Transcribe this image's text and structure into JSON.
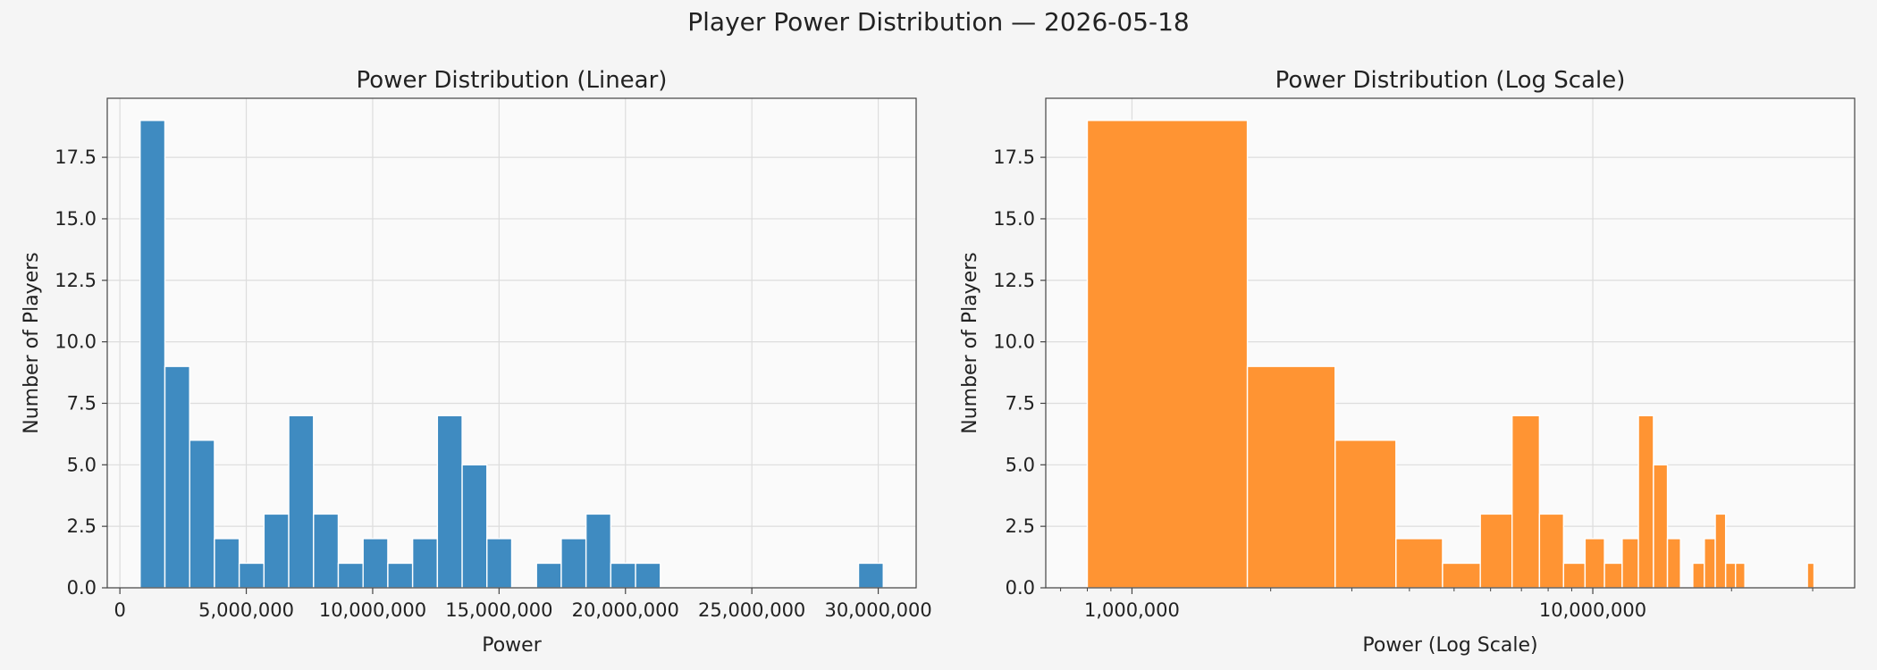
{
  "suptitle": "Player Power Distribution — 2026-05-18",
  "colors": {
    "linear_bars": "#3f8bc1",
    "log_bars": "#ff9433",
    "plot_bg": "#fafafa",
    "grid": "#dddddd"
  },
  "chart_data": [
    {
      "type": "bar",
      "title": "Power Distribution (Linear)",
      "xlabel": "Power",
      "ylabel": "Number of Players",
      "xscale": "linear",
      "xlim": [
        -500000,
        31500000
      ],
      "ylim": [
        0,
        19.9
      ],
      "grid": true,
      "x_ticks": [
        0,
        5000000,
        10000000,
        15000000,
        20000000,
        25000000,
        30000000
      ],
      "x_tick_labels": [
        "0",
        "5,000,000",
        "10,000,000",
        "15,000,000",
        "20,000,000",
        "25,000,000",
        "30,000,000"
      ],
      "y_ticks": [
        0,
        2.5,
        5,
        7.5,
        10,
        12.5,
        15,
        17.5
      ],
      "y_tick_labels": [
        "0.0",
        "2.5",
        "5.0",
        "7.5",
        "10.0",
        "12.5",
        "15.0",
        "17.5"
      ],
      "bins": [
        {
          "x0": 800000,
          "x1": 1780000,
          "count": 19
        },
        {
          "x0": 1780000,
          "x1": 2760000,
          "count": 9
        },
        {
          "x0": 2760000,
          "x1": 3740000,
          "count": 6
        },
        {
          "x0": 3740000,
          "x1": 4720000,
          "count": 2
        },
        {
          "x0": 4720000,
          "x1": 5700000,
          "count": 1
        },
        {
          "x0": 5700000,
          "x1": 6680000,
          "count": 3
        },
        {
          "x0": 6680000,
          "x1": 7660000,
          "count": 7
        },
        {
          "x0": 7660000,
          "x1": 8640000,
          "count": 3
        },
        {
          "x0": 8640000,
          "x1": 9620000,
          "count": 1
        },
        {
          "x0": 9620000,
          "x1": 10600000,
          "count": 2
        },
        {
          "x0": 10600000,
          "x1": 11580000,
          "count": 1
        },
        {
          "x0": 11580000,
          "x1": 12560000,
          "count": 2
        },
        {
          "x0": 12560000,
          "x1": 13540000,
          "count": 7
        },
        {
          "x0": 13540000,
          "x1": 14520000,
          "count": 5
        },
        {
          "x0": 14520000,
          "x1": 15500000,
          "count": 2
        },
        {
          "x0": 15500000,
          "x1": 16480000,
          "count": 0
        },
        {
          "x0": 16480000,
          "x1": 17460000,
          "count": 1
        },
        {
          "x0": 17460000,
          "x1": 18440000,
          "count": 2
        },
        {
          "x0": 18440000,
          "x1": 19420000,
          "count": 3
        },
        {
          "x0": 19420000,
          "x1": 20400000,
          "count": 1
        },
        {
          "x0": 20400000,
          "x1": 21380000,
          "count": 1
        },
        {
          "x0": 29220000,
          "x1": 30200000,
          "count": 1
        }
      ]
    },
    {
      "type": "bar",
      "title": "Power Distribution (Log Scale)",
      "xlabel": "Power (Log Scale)",
      "ylabel": "Number of Players",
      "xscale": "log",
      "xlim": [
        650000,
        37000000
      ],
      "ylim": [
        0,
        19.9
      ],
      "grid": true,
      "x_ticks": [
        1000000,
        10000000
      ],
      "x_tick_labels": [
        "1,000,000",
        "10,000,000"
      ],
      "y_ticks": [
        0,
        2.5,
        5,
        7.5,
        10,
        12.5,
        15,
        17.5
      ],
      "y_tick_labels": [
        "0.0",
        "2.5",
        "5.0",
        "7.5",
        "10.0",
        "12.5",
        "15.0",
        "17.5"
      ],
      "bins": [
        {
          "x0": 800000,
          "x1": 1780000,
          "count": 19
        },
        {
          "x0": 1780000,
          "x1": 2760000,
          "count": 9
        },
        {
          "x0": 2760000,
          "x1": 3740000,
          "count": 6
        },
        {
          "x0": 3740000,
          "x1": 4720000,
          "count": 2
        },
        {
          "x0": 4720000,
          "x1": 5700000,
          "count": 1
        },
        {
          "x0": 5700000,
          "x1": 6680000,
          "count": 3
        },
        {
          "x0": 6680000,
          "x1": 7660000,
          "count": 7
        },
        {
          "x0": 7660000,
          "x1": 8640000,
          "count": 3
        },
        {
          "x0": 8640000,
          "x1": 9620000,
          "count": 1
        },
        {
          "x0": 9620000,
          "x1": 10600000,
          "count": 2
        },
        {
          "x0": 10600000,
          "x1": 11580000,
          "count": 1
        },
        {
          "x0": 11580000,
          "x1": 12560000,
          "count": 2
        },
        {
          "x0": 12560000,
          "x1": 13540000,
          "count": 7
        },
        {
          "x0": 13540000,
          "x1": 14520000,
          "count": 5
        },
        {
          "x0": 14520000,
          "x1": 15500000,
          "count": 2
        },
        {
          "x0": 15500000,
          "x1": 16480000,
          "count": 0
        },
        {
          "x0": 16480000,
          "x1": 17460000,
          "count": 1
        },
        {
          "x0": 17460000,
          "x1": 18440000,
          "count": 2
        },
        {
          "x0": 18440000,
          "x1": 19420000,
          "count": 3
        },
        {
          "x0": 19420000,
          "x1": 20400000,
          "count": 1
        },
        {
          "x0": 20400000,
          "x1": 21380000,
          "count": 1
        },
        {
          "x0": 29220000,
          "x1": 30200000,
          "count": 1
        }
      ]
    }
  ]
}
